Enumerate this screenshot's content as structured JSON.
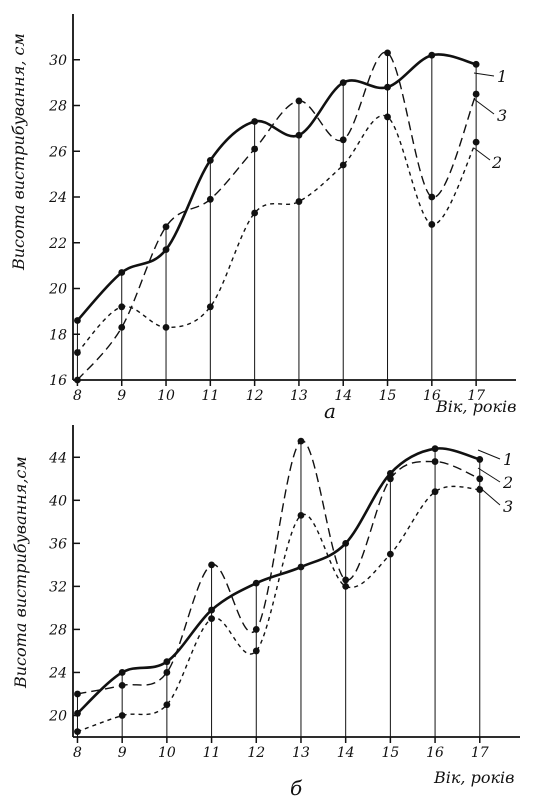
{
  "chart_data": [
    {
      "type": "line",
      "panel_label": "а",
      "ylabel": "Висота вистрибування, см",
      "xlabel": "Вік, років",
      "ylim": [
        16,
        32
      ],
      "xlim": [
        7.9,
        17.9
      ],
      "yticks": [
        16,
        18,
        20,
        22,
        24,
        26,
        28,
        30
      ],
      "x": [
        8,
        9,
        10,
        11,
        12,
        13,
        14,
        15,
        16,
        17
      ],
      "series": [
        {
          "name": "1",
          "style": "solid",
          "values": [
            18.6,
            20.7,
            21.7,
            25.6,
            27.3,
            26.7,
            29.0,
            28.8,
            30.2,
            29.8
          ]
        },
        {
          "name": "3",
          "style": "longdash",
          "values": [
            16.0,
            18.3,
            22.7,
            23.9,
            26.1,
            28.2,
            26.5,
            30.3,
            24.0,
            28.5
          ]
        },
        {
          "name": "2",
          "style": "shortdash",
          "values": [
            17.2,
            19.2,
            18.3,
            19.2,
            23.3,
            23.8,
            25.4,
            27.5,
            22.8,
            26.4
          ]
        }
      ]
    },
    {
      "type": "line",
      "panel_label": "б",
      "ylabel": "Висота вистрибування,см",
      "xlabel": "Вік, років",
      "ylim": [
        18,
        47
      ],
      "xlim": [
        7.9,
        17.9
      ],
      "yticks": [
        20,
        24,
        28,
        32,
        36,
        40,
        44
      ],
      "x": [
        8,
        9,
        10,
        11,
        12,
        13,
        14,
        15,
        16,
        17
      ],
      "series": [
        {
          "name": "1",
          "style": "solid",
          "values": [
            20.2,
            24.0,
            25.0,
            29.8,
            32.3,
            33.8,
            36.0,
            42.5,
            44.8,
            43.8
          ]
        },
        {
          "name": "2",
          "style": "longdash",
          "values": [
            22.0,
            22.8,
            24.0,
            34.0,
            28.0,
            45.5,
            32.6,
            42.0,
            43.6,
            42.0
          ]
        },
        {
          "name": "3",
          "style": "shortdash",
          "values": [
            18.5,
            20.0,
            21.0,
            29.0,
            26.0,
            38.6,
            32.0,
            35.0,
            40.8,
            41.0
          ]
        }
      ]
    }
  ]
}
